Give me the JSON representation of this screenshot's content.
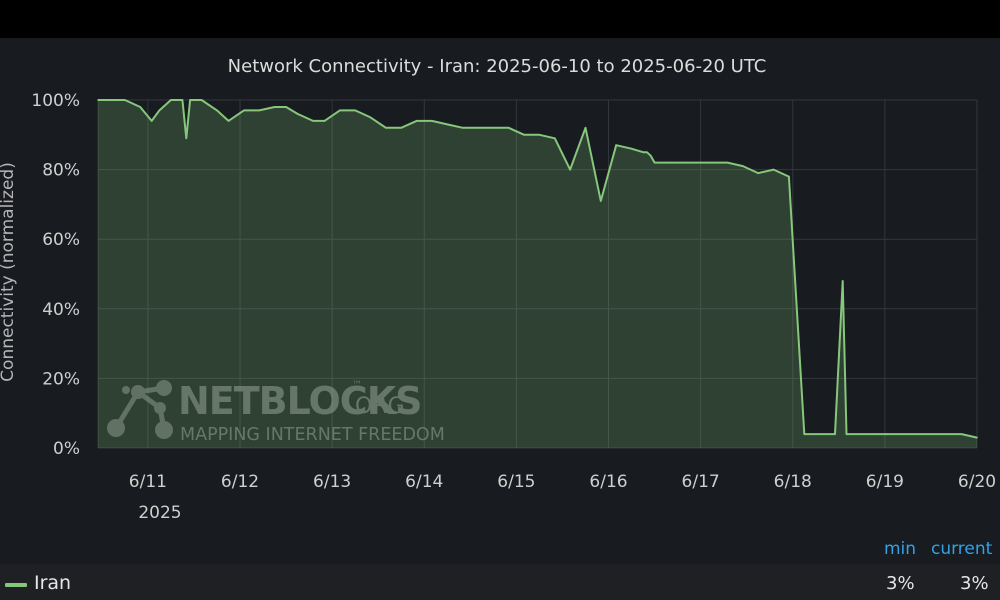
{
  "chart_data": {
    "type": "area",
    "title": "Network Connectivity - Iran: 2025-06-10 to 2025-06-20 UTC",
    "ylabel": "Connectivity (normalized)",
    "xlabel": "",
    "ylim": [
      0,
      100
    ],
    "y_ticks": [
      "0%",
      "20%",
      "40%",
      "60%",
      "80%",
      "100%"
    ],
    "y_tick_values": [
      0,
      20,
      40,
      60,
      80,
      100
    ],
    "x_ticks": [
      "6/11",
      "6/12",
      "6/13",
      "6/14",
      "6/15",
      "6/16",
      "6/17",
      "6/18",
      "6/19",
      "6/20"
    ],
    "x_tick_values": [
      "2025-06-11",
      "2025-06-12",
      "2025-06-13",
      "2025-06-14",
      "2025-06-15",
      "2025-06-16",
      "2025-06-17",
      "2025-06-18",
      "2025-06-19",
      "2025-06-20"
    ],
    "x_year_label": "2025",
    "xlim": [
      "2025-06-10 11:00",
      "2025-06-20 00:00"
    ],
    "grid": true,
    "series": [
      {
        "name": "Iran",
        "color": "#86c77c",
        "x": [
          "2025-06-10 11:00",
          "2025-06-10 14:00",
          "2025-06-10 18:00",
          "2025-06-10 22:00",
          "2025-06-11 01:00",
          "2025-06-11 03:00",
          "2025-06-11 06:00",
          "2025-06-11 09:00",
          "2025-06-11 10:00",
          "2025-06-11 11:00",
          "2025-06-11 12:00",
          "2025-06-11 14:00",
          "2025-06-11 18:00",
          "2025-06-11 21:00",
          "2025-06-12 01:00",
          "2025-06-12 05:00",
          "2025-06-12 09:00",
          "2025-06-12 12:00",
          "2025-06-12 15:00",
          "2025-06-12 19:00",
          "2025-06-12 22:00",
          "2025-06-13 02:00",
          "2025-06-13 06:00",
          "2025-06-13 10:00",
          "2025-06-13 14:00",
          "2025-06-13 18:00",
          "2025-06-13 22:00",
          "2025-06-14 02:00",
          "2025-06-14 06:00",
          "2025-06-14 10:00",
          "2025-06-14 14:00",
          "2025-06-14 18:00",
          "2025-06-14 22:00",
          "2025-06-15 02:00",
          "2025-06-15 06:00",
          "2025-06-15 10:00",
          "2025-06-15 14:00",
          "2025-06-15 18:00",
          "2025-06-15 22:00",
          "2025-06-16 02:00",
          "2025-06-16 06:00",
          "2025-06-16 09:00",
          "2025-06-16 10:00",
          "2025-06-16 11:00",
          "2025-06-16 12:00",
          "2025-06-16 15:00",
          "2025-06-16 19:00",
          "2025-06-16 23:00",
          "2025-06-17 03:00",
          "2025-06-17 07:00",
          "2025-06-17 11:00",
          "2025-06-17 15:00",
          "2025-06-17 19:00",
          "2025-06-17 23:00",
          "2025-06-18 03:00",
          "2025-06-18 07:00",
          "2025-06-18 11:00",
          "2025-06-18 13:00",
          "2025-06-18 14:00",
          "2025-06-18 15:00",
          "2025-06-18 18:00",
          "2025-06-18 20:00",
          "2025-06-18 21:00",
          "2025-06-18 22:00",
          "2025-06-19 02:00",
          "2025-06-19 08:00",
          "2025-06-19 14:00",
          "2025-06-19 20:00",
          "2025-06-20 00:00"
        ],
        "y": [
          100,
          100,
          100,
          98,
          94,
          97,
          100,
          100,
          89,
          100,
          100,
          100,
          97,
          94,
          97,
          97,
          98,
          98,
          96,
          94,
          94,
          97,
          97,
          95,
          92,
          92,
          94,
          94,
          93,
          92,
          92,
          92,
          92,
          90,
          90,
          89,
          80,
          92,
          71,
          87,
          86,
          85,
          85,
          84,
          82,
          82,
          82,
          82,
          82,
          82,
          81,
          79,
          80,
          78,
          4,
          4,
          4,
          48,
          4,
          4,
          4,
          4,
          4,
          4,
          4,
          4,
          4,
          4,
          3
        ],
        "min_label": "3%",
        "current_label": "3%"
      }
    ],
    "legend": {
      "position": "bottom",
      "min_header": "min",
      "current_header": "current"
    }
  },
  "watermark": {
    "brand": "NETBLOCKS",
    "brand_suffix": ".ORG",
    "tm": "™",
    "tagline": "MAPPING INTERNET FREEDOM"
  }
}
